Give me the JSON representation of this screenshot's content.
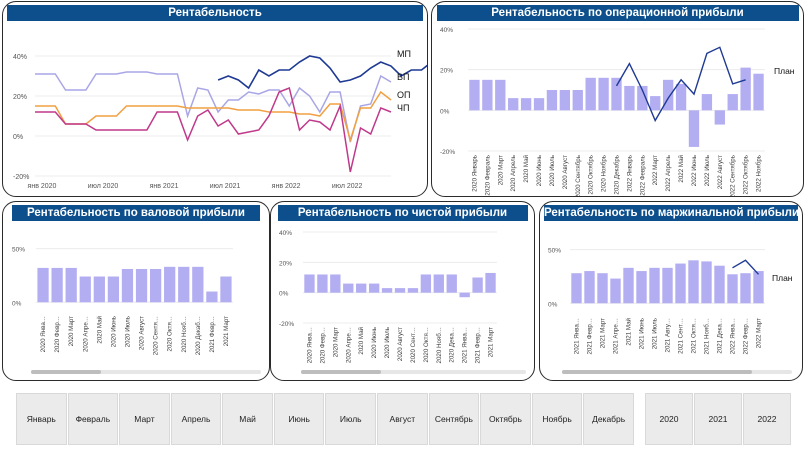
{
  "panels": {
    "main": {
      "title": "Рентабельность"
    },
    "op": {
      "title": "Рентабельность по операционной прибыли"
    },
    "val": {
      "title": "Рентабельность по валовой прибыли"
    },
    "net": {
      "title": "Рентабельность по чистой прибыли"
    },
    "marg": {
      "title": "Рентабельность по маржинальной прибыли"
    }
  },
  "chart_data": [
    {
      "id": "main",
      "type": "line",
      "ylim": [
        -20,
        45
      ],
      "y_ticks": [
        "40%",
        "20%",
        "0%",
        "-20%"
      ],
      "y_tick_values": [
        40,
        20,
        0,
        -20
      ],
      "x_ticks": [
        "янв 2020",
        "июл 2020",
        "янв 2021",
        "июл 2021",
        "янв 2022",
        "июл 2022"
      ],
      "x_tick_index": [
        0,
        6,
        12,
        18,
        24,
        30
      ],
      "n_points": 36,
      "series": [
        {
          "name": "МП",
          "color": "#1f3a93",
          "start": 18,
          "values": [
            28,
            30,
            28,
            24,
            33,
            30,
            33,
            33,
            37,
            40,
            39,
            34,
            27,
            28,
            30,
            34,
            37,
            35,
            30,
            33,
            33,
            37,
            35,
            36
          ]
        },
        {
          "name": "ВП",
          "color": "#a9a6e6",
          "start": 0,
          "values": [
            31,
            31,
            31,
            23,
            23,
            23,
            31,
            31,
            31,
            32,
            32,
            32,
            31,
            31,
            31,
            10,
            24,
            23,
            12,
            18,
            18,
            22,
            21,
            23,
            23,
            15,
            24,
            20,
            12,
            22,
            22,
            -3,
            15,
            16,
            30,
            27
          ]
        },
        {
          "name": "ОП",
          "color": "#f0a042",
          "start": 0,
          "values": [
            15,
            15,
            15,
            6,
            6,
            6,
            10,
            10,
            10,
            15,
            15,
            15,
            15,
            15,
            15,
            14,
            14,
            14,
            14,
            14,
            13,
            13,
            13,
            12,
            12,
            12,
            11,
            11,
            10,
            16,
            16,
            -2,
            14,
            14,
            22,
            18
          ]
        },
        {
          "name": "ЧП",
          "color": "#c0398a",
          "start": 0,
          "values": [
            12,
            12,
            12,
            6,
            6,
            6,
            3,
            3,
            3,
            3,
            3,
            3,
            12,
            12,
            12,
            -2,
            10,
            13,
            5,
            8,
            1,
            2,
            3,
            10,
            22,
            24,
            3,
            8,
            7,
            3,
            15,
            -18,
            4,
            1,
            14,
            12
          ]
        }
      ]
    },
    {
      "id": "op",
      "type": "bar",
      "ylim": [
        -20,
        40
      ],
      "y_ticks": [
        "40%",
        "20%",
        "0%",
        "-20%"
      ],
      "y_tick_values": [
        40,
        20,
        0,
        -20
      ],
      "categories": [
        "2020 Январь",
        "2020 Февраль",
        "2020 Март",
        "2020 Апрель",
        "2020 Май",
        "2020 Июнь",
        "2020 Июль",
        "2020 Август",
        "2020 Сентябрь",
        "2020 Октябрь",
        "2020 Ноябрь",
        "2020 Декабрь",
        "2022 Январь",
        "2022 Февраль",
        "2022 Март",
        "2022 Апрель",
        "2022 Май",
        "2022 Июнь",
        "2022 Июль",
        "2022 Август",
        "2022 Сентябрь",
        "2022 Октябрь",
        "2022 Ноябрь"
      ],
      "values": [
        15,
        15,
        15,
        6,
        6,
        6,
        10,
        10,
        10,
        16,
        16,
        16,
        12,
        12,
        7,
        15,
        13,
        -18,
        8,
        -7,
        8,
        21,
        18
      ],
      "plan_name": "План",
      "plan_start": 11,
      "plan_values": [
        12,
        23,
        10,
        -5,
        6,
        15,
        8,
        28,
        31,
        13,
        15
      ]
    },
    {
      "id": "val",
      "type": "bar",
      "ylim": [
        -10,
        58
      ],
      "y_ticks": [
        "50%",
        "0%"
      ],
      "y_tick_values": [
        50,
        0
      ],
      "categories": [
        "2020 Янва…",
        "2020 Февр…",
        "2020 Март",
        "2020 Апре…",
        "2020 Май",
        "2020 Июнь",
        "2020 Июль",
        "2020 Август",
        "2020 Сентя…",
        "2020 Октя…",
        "2020 Нояб…",
        "2020 Декаб…",
        "2021 Февр…",
        "2021 Март"
      ],
      "values": [
        32,
        32,
        32,
        24,
        24,
        24,
        31,
        31,
        31,
        33,
        33,
        33,
        10,
        24
      ]
    },
    {
      "id": "net",
      "type": "bar",
      "ylim": [
        -20,
        40
      ],
      "y_ticks": [
        "40%",
        "20%",
        "0%",
        "-20%"
      ],
      "y_tick_values": [
        40,
        20,
        0,
        -20
      ],
      "categories": [
        "2020 Янва…",
        "2020 Февр…",
        "2020 Март",
        "2020 Апре…",
        "2020 Май",
        "2020 Июнь",
        "2020 Июль",
        "2020 Август",
        "2020 Сент…",
        "2020 Октя…",
        "2020 Нояб…",
        "2020 Дека…",
        "2021 Янва…",
        "2021 Февр…",
        "2021 Март"
      ],
      "values": [
        12,
        12,
        12,
        6,
        6,
        6,
        3,
        3,
        3,
        12,
        12,
        12,
        -3,
        10,
        13
      ]
    },
    {
      "id": "marg",
      "type": "bar",
      "ylim": [
        -10,
        58
      ],
      "y_ticks": [
        "50%",
        "0%"
      ],
      "y_tick_values": [
        50,
        0
      ],
      "categories": [
        "2021 Янва…",
        "2021 Февр…",
        "2021 Март",
        "2021 Апре…",
        "2021 Май",
        "2021 Июнь",
        "2021 Июль",
        "2021 Авгу…",
        "2021 Сент…",
        "2021 Октя…",
        "2021 Нояб…",
        "2021 Дека…",
        "2022 Янва…",
        "2022 Февр…",
        "2022 Март"
      ],
      "values": [
        28,
        30,
        28,
        23,
        33,
        30,
        33,
        33,
        37,
        40,
        39,
        35,
        27,
        28,
        30
      ],
      "plan_name": "План",
      "plan_start": 12,
      "plan_values": [
        33,
        40,
        27
      ]
    }
  ],
  "slicers": {
    "months": [
      "Январь",
      "Февраль",
      "Март",
      "Апрель",
      "Май",
      "Июнь",
      "Июль",
      "Август",
      "Сентябрь",
      "Октябрь",
      "Ноябрь",
      "Декабрь"
    ],
    "years": [
      "2020",
      "2021",
      "2022"
    ]
  }
}
